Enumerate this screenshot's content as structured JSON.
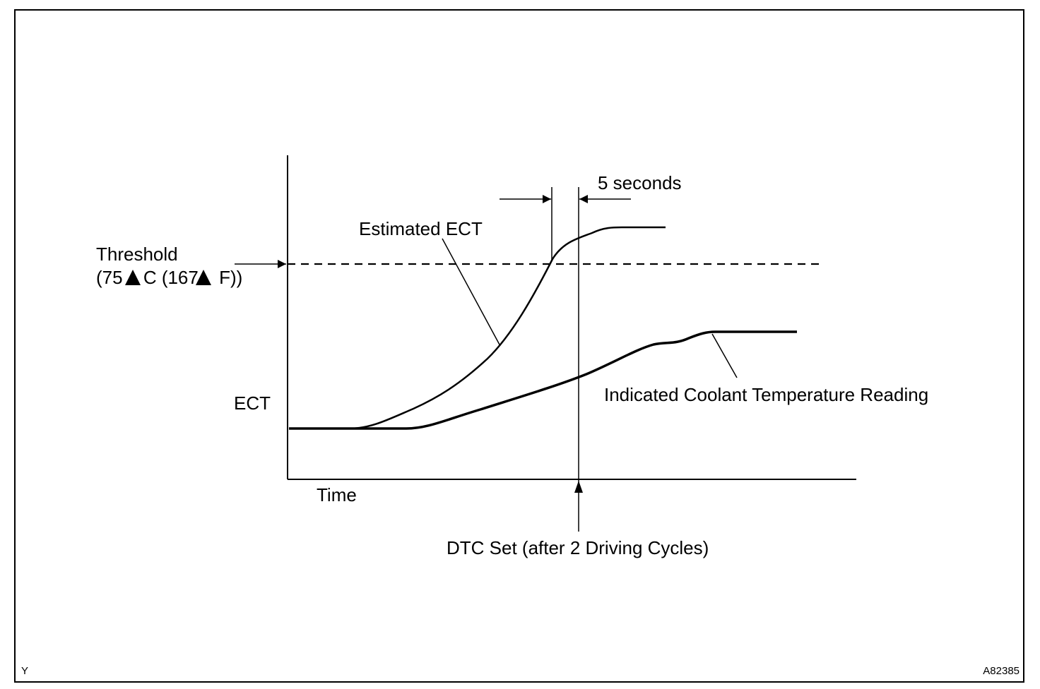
{
  "diagram": {
    "threshold_label": "Threshold",
    "threshold_value_parts": [
      "(75",
      "C (167",
      "F))"
    ],
    "estimated_ect_label": "Estimated ECT",
    "five_seconds_label": "5 seconds",
    "ect_axis_label": "ECT",
    "time_axis_label": "Time",
    "indicated_label": "Indicated Coolant Temperature Reading",
    "dtc_label": "DTC Set (after 2 Driving Cycles)",
    "corner_left": "Y",
    "corner_right": "A82385",
    "degree_marker_icon": "filled-triangle-icon"
  },
  "colors": {
    "ink": "#000000",
    "background": "#ffffff"
  }
}
